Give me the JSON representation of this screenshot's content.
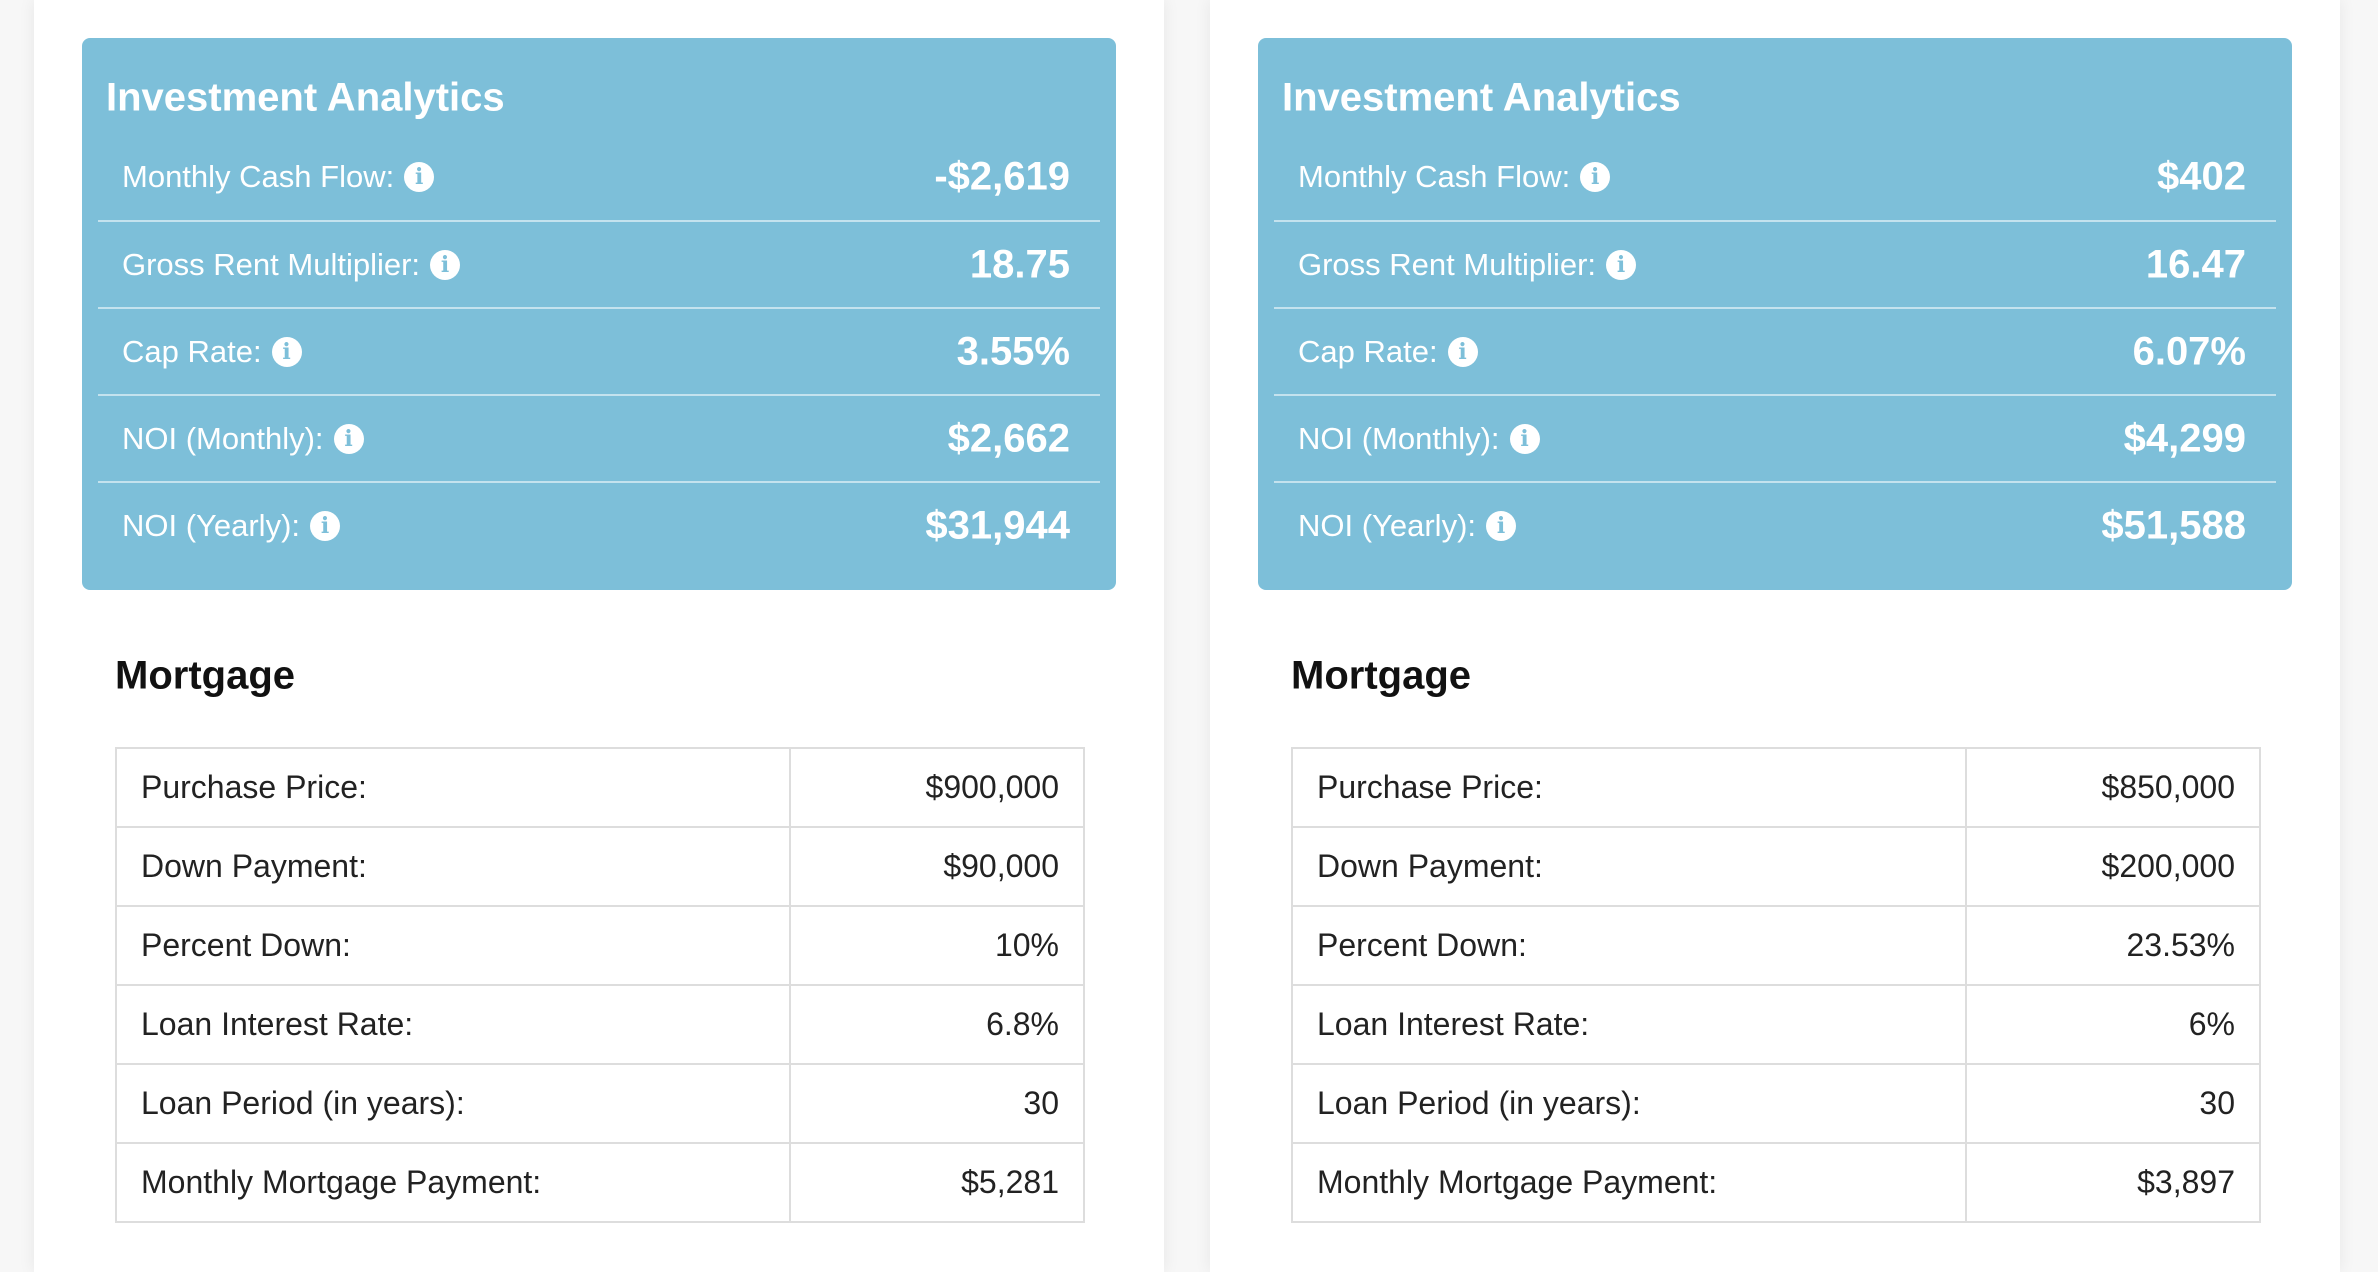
{
  "colors": {
    "analytics_bg": "#7dbfd9",
    "analytics_text": "#ffffff",
    "table_border": "#dddddd"
  },
  "panels": [
    {
      "analytics": {
        "title": "Investment Analytics",
        "metrics": [
          {
            "label": "Monthly Cash Flow:",
            "value": "-$2,619",
            "icon": "info-icon"
          },
          {
            "label": "Gross Rent Multiplier:",
            "value": "18.75",
            "icon": "info-icon"
          },
          {
            "label": "Cap Rate:",
            "value": "3.55%",
            "icon": "info-icon"
          },
          {
            "label": "NOI (Monthly):",
            "value": "$2,662",
            "icon": "info-icon"
          },
          {
            "label": "NOI (Yearly):",
            "value": "$31,944",
            "icon": "info-icon"
          }
        ]
      },
      "mortgage": {
        "title": "Mortgage",
        "rows": [
          {
            "label": "Purchase Price:",
            "value": "$900,000"
          },
          {
            "label": "Down Payment:",
            "value": "$90,000"
          },
          {
            "label": "Percent Down:",
            "value": "10%"
          },
          {
            "label": "Loan Interest Rate:",
            "value": "6.8%"
          },
          {
            "label": "Loan Period (in years):",
            "value": "30"
          },
          {
            "label": "Monthly Mortgage Payment:",
            "value": "$5,281"
          }
        ]
      }
    },
    {
      "analytics": {
        "title": "Investment Analytics",
        "metrics": [
          {
            "label": "Monthly Cash Flow:",
            "value": "$402",
            "icon": "info-icon"
          },
          {
            "label": "Gross Rent Multiplier:",
            "value": "16.47",
            "icon": "info-icon"
          },
          {
            "label": "Cap Rate:",
            "value": "6.07%",
            "icon": "info-icon"
          },
          {
            "label": "NOI (Monthly):",
            "value": "$4,299",
            "icon": "info-icon"
          },
          {
            "label": "NOI (Yearly):",
            "value": "$51,588",
            "icon": "info-icon"
          }
        ]
      },
      "mortgage": {
        "title": "Mortgage",
        "rows": [
          {
            "label": "Purchase Price:",
            "value": "$850,000"
          },
          {
            "label": "Down Payment:",
            "value": "$200,000"
          },
          {
            "label": "Percent Down:",
            "value": "23.53%"
          },
          {
            "label": "Loan Interest Rate:",
            "value": "6%"
          },
          {
            "label": "Loan Period (in years):",
            "value": "30"
          },
          {
            "label": "Monthly Mortgage Payment:",
            "value": "$3,897"
          }
        ]
      }
    }
  ]
}
